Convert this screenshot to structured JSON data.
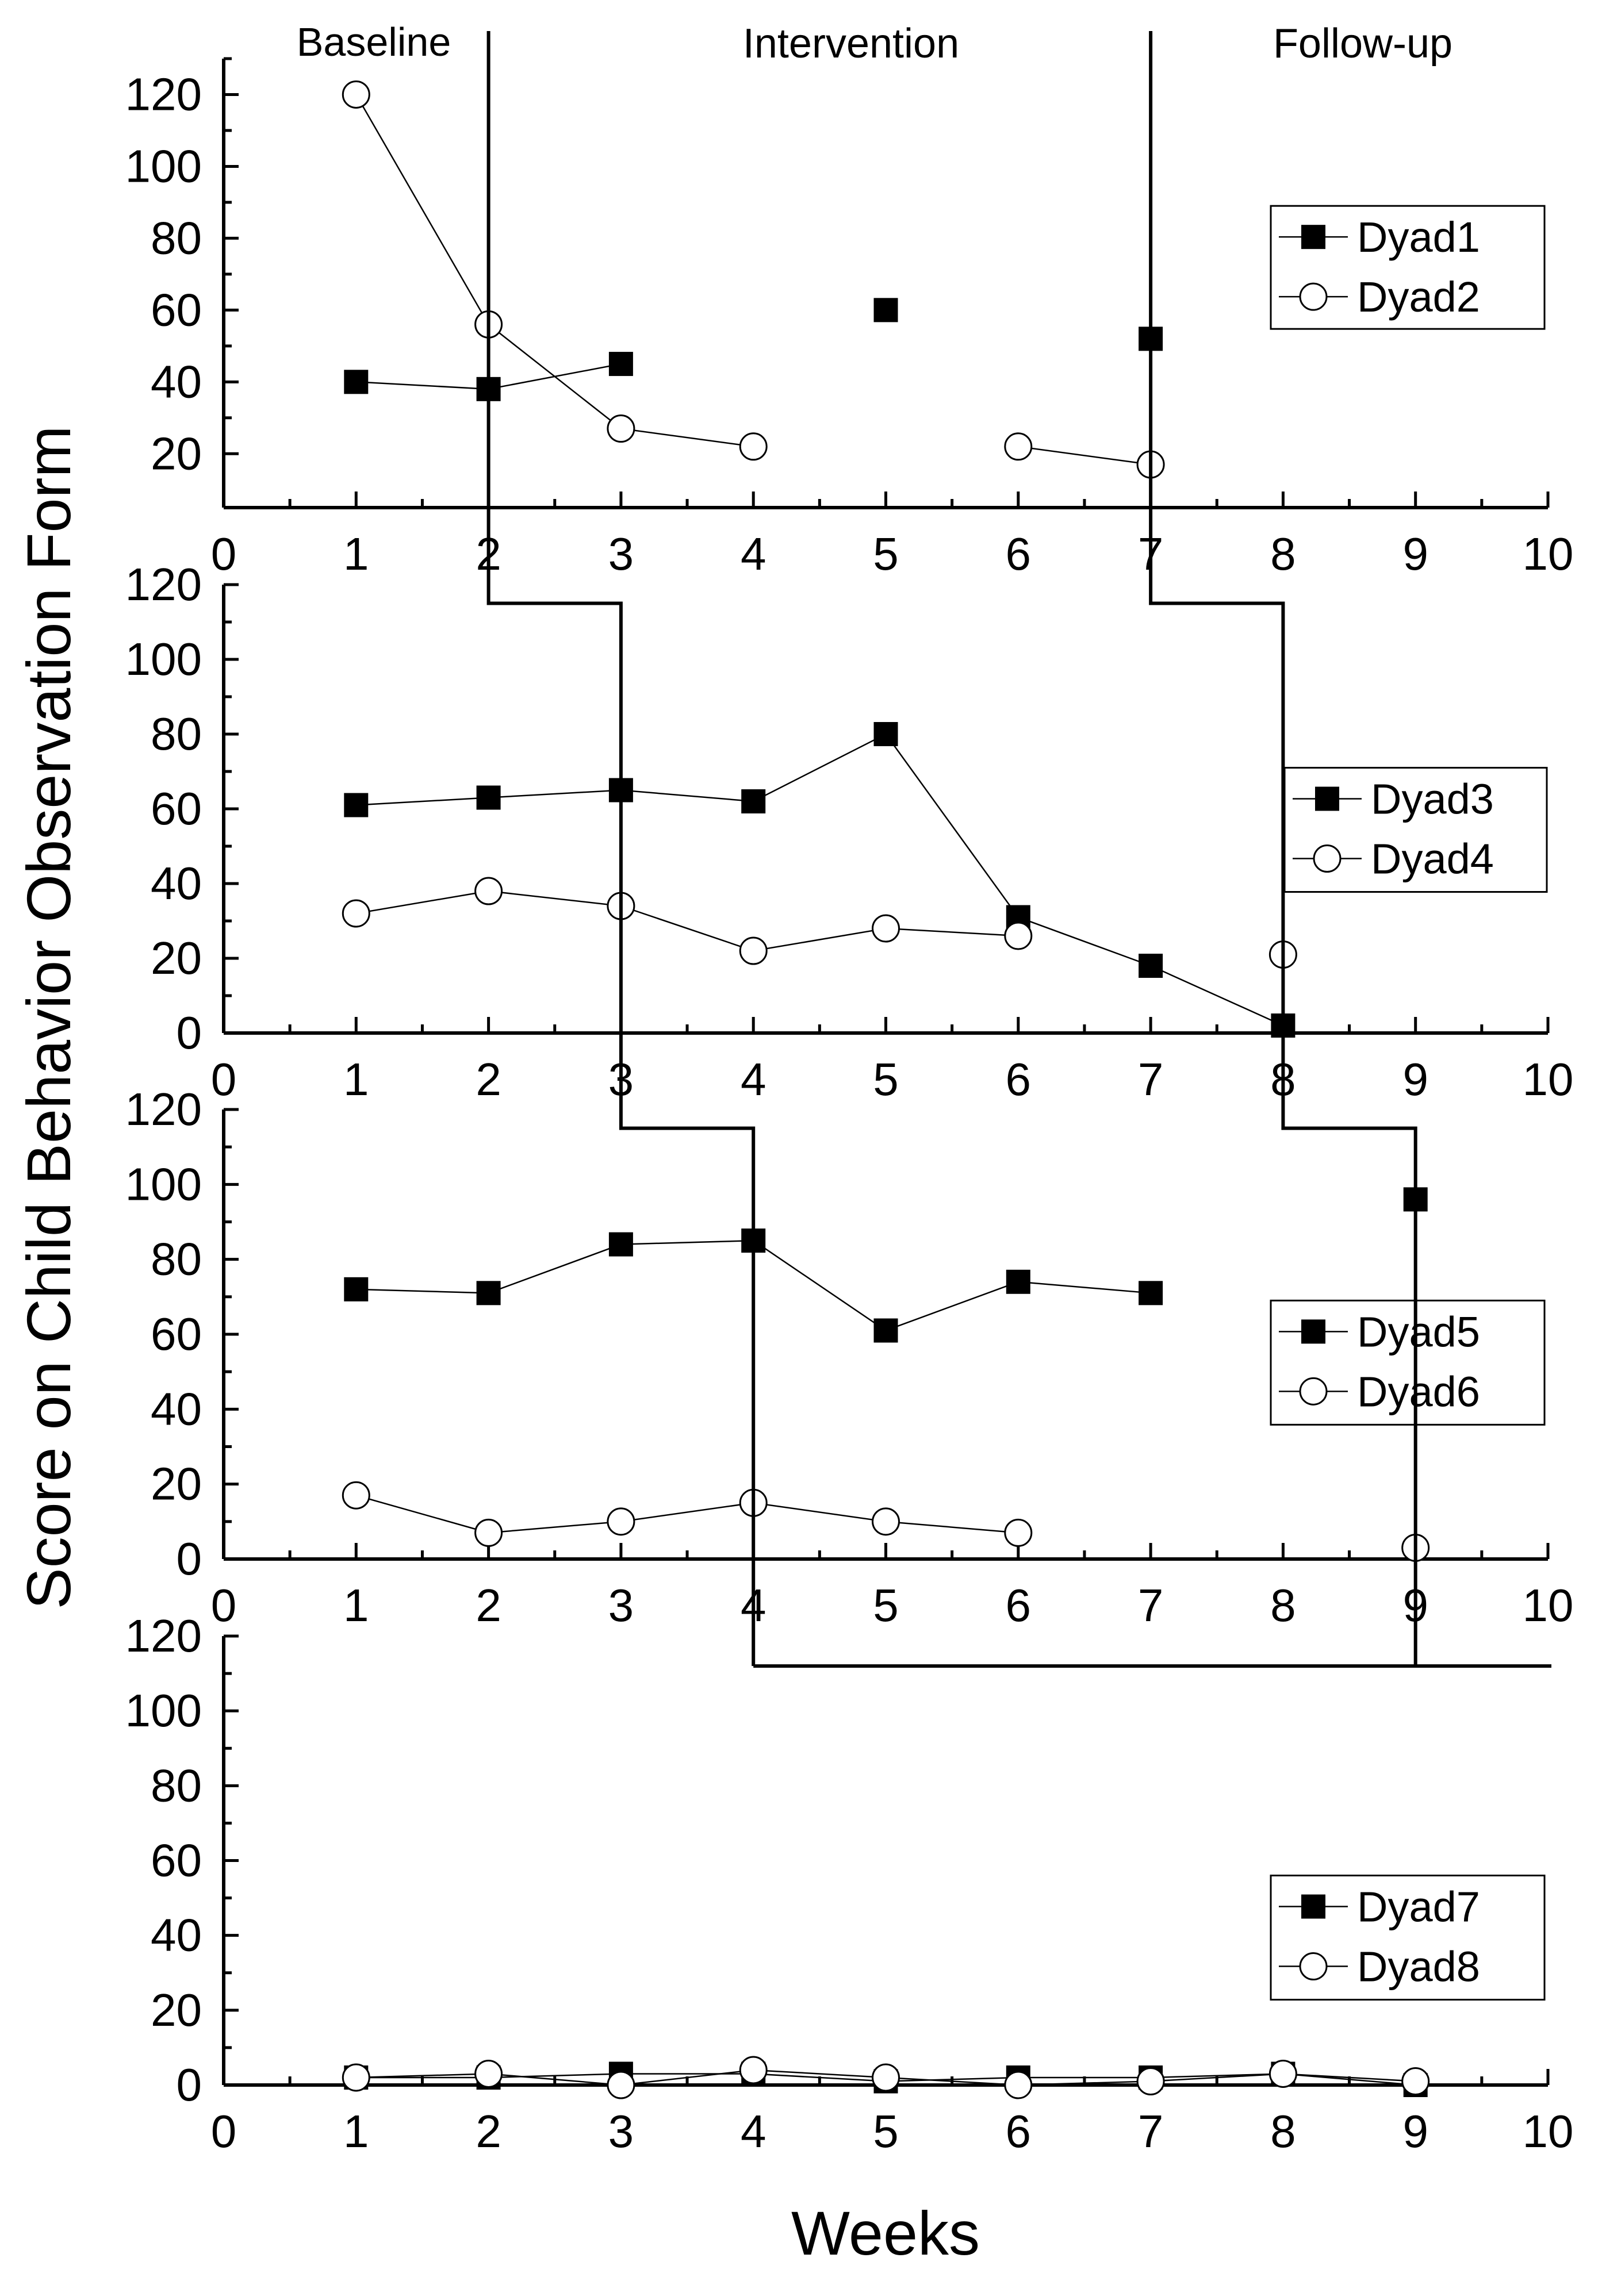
{
  "figure": {
    "phase_labels": [
      "Baseline",
      "Intervention",
      "Follow-up"
    ],
    "ylabel": "Score on Child Behavior Observation Form",
    "xlabel": "Weeks"
  },
  "chart_data": [
    {
      "type": "line",
      "panel": 1,
      "xlim": [
        0,
        10
      ],
      "ylim": [
        5,
        130
      ],
      "yticks": [
        20,
        40,
        60,
        80,
        100,
        120
      ],
      "xticks": [
        0,
        1,
        2,
        3,
        4,
        5,
        6,
        7,
        8,
        9,
        10
      ],
      "phase_change_after_week": [
        2,
        7
      ],
      "series": [
        {
          "name": "Dyad1",
          "marker": "filled-square",
          "x": [
            1,
            2,
            3,
            null,
            5,
            null,
            7
          ],
          "y": [
            40,
            38,
            45,
            null,
            60,
            null,
            52
          ]
        },
        {
          "name": "Dyad2",
          "marker": "open-circle",
          "x": [
            1,
            2,
            3,
            4,
            null,
            6,
            7
          ],
          "y": [
            120,
            56,
            27,
            22,
            null,
            22,
            17
          ]
        }
      ]
    },
    {
      "type": "line",
      "panel": 2,
      "xlim": [
        0,
        10
      ],
      "ylim": [
        0,
        120
      ],
      "yticks": [
        0,
        20,
        40,
        60,
        80,
        100,
        120
      ],
      "xticks": [
        0,
        1,
        2,
        3,
        4,
        5,
        6,
        7,
        8,
        9,
        10
      ],
      "phase_change_after_week": [
        3,
        8
      ],
      "series": [
        {
          "name": "Dyad3",
          "marker": "filled-square",
          "x": [
            1,
            2,
            3,
            4,
            5,
            6,
            7,
            8
          ],
          "y": [
            61,
            63,
            65,
            62,
            80,
            31,
            18,
            2
          ]
        },
        {
          "name": "Dyad4",
          "marker": "open-circle",
          "x": [
            1,
            2,
            3,
            4,
            5,
            6,
            null,
            8
          ],
          "y": [
            32,
            38,
            34,
            22,
            28,
            26,
            null,
            21
          ]
        }
      ]
    },
    {
      "type": "line",
      "panel": 3,
      "xlim": [
        0,
        10
      ],
      "ylim": [
        0,
        120
      ],
      "yticks": [
        0,
        20,
        40,
        60,
        80,
        100,
        120
      ],
      "xticks": [
        0,
        1,
        2,
        3,
        4,
        5,
        6,
        7,
        8,
        9,
        10
      ],
      "phase_change_after_week": [
        4,
        9
      ],
      "series": [
        {
          "name": "Dyad5",
          "marker": "filled-square",
          "x": [
            1,
            2,
            3,
            4,
            5,
            6,
            7,
            null,
            9
          ],
          "y": [
            72,
            71,
            84,
            85,
            61,
            74,
            71,
            null,
            96
          ]
        },
        {
          "name": "Dyad6",
          "marker": "open-circle",
          "x": [
            1,
            2,
            3,
            4,
            5,
            6,
            null,
            null,
            9
          ],
          "y": [
            17,
            7,
            10,
            15,
            10,
            7,
            null,
            null,
            3
          ]
        }
      ]
    },
    {
      "type": "line",
      "panel": 4,
      "xlim": [
        0,
        10
      ],
      "ylim": [
        0,
        120
      ],
      "yticks": [
        0,
        20,
        40,
        60,
        80,
        100,
        120
      ],
      "xticks": [
        0,
        1,
        2,
        3,
        4,
        5,
        6,
        7,
        8,
        9,
        10
      ],
      "phase_change_after_week": [
        4,
        9
      ],
      "series": [
        {
          "name": "Dyad7",
          "marker": "filled-square",
          "x": [
            1,
            2,
            3,
            4,
            5,
            6,
            7,
            8,
            9
          ],
          "y": [
            2,
            2,
            3,
            3,
            1,
            2,
            2,
            3,
            0
          ]
        },
        {
          "name": "Dyad8",
          "marker": "open-circle",
          "x": [
            1,
            2,
            3,
            4,
            5,
            6,
            7,
            8,
            9
          ],
          "y": [
            2,
            3,
            0,
            4,
            2,
            0,
            1,
            3,
            1
          ]
        }
      ]
    }
  ]
}
